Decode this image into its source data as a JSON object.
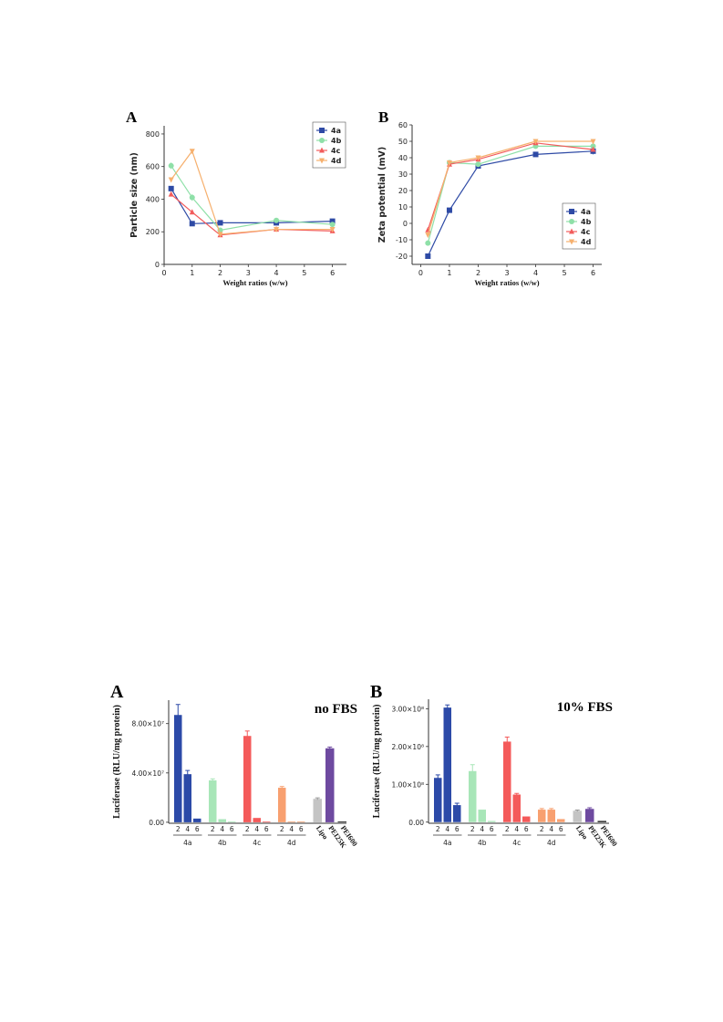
{
  "chart_data": [
    {
      "panel": "A",
      "type": "line",
      "xlabel": "Weight ratios (w/w)",
      "ylabel": "Particle size (nm)",
      "xlim": [
        0,
        6.5
      ],
      "ylim": [
        0,
        850
      ],
      "xticks": [
        "0",
        "1",
        "2",
        "3",
        "4",
        "5",
        "6"
      ],
      "yticks": [
        "0",
        "200",
        "400",
        "600",
        "800"
      ],
      "legend_position": "top-right",
      "x": [
        0.25,
        1,
        2,
        4,
        6
      ],
      "series": [
        {
          "name": "4a",
          "color": "#2e4aa5",
          "marker": "square",
          "values": [
            465,
            250,
            255,
            255,
            265
          ],
          "errors": [
            15,
            0,
            0,
            0,
            10
          ]
        },
        {
          "name": "4b",
          "color": "#8fe0a8",
          "marker": "circle",
          "values": [
            605,
            410,
            210,
            270,
            245
          ],
          "errors": [
            20,
            20,
            0,
            10,
            0
          ]
        },
        {
          "name": "4c",
          "color": "#f25c5c",
          "marker": "triangle",
          "values": [
            430,
            320,
            180,
            215,
            205
          ],
          "errors": [
            0,
            0,
            0,
            0,
            0
          ]
        },
        {
          "name": "4d",
          "color": "#f6b06e",
          "marker": "triangle-down",
          "values": [
            520,
            695,
            185,
            215,
            215
          ],
          "errors": [
            0,
            10,
            0,
            0,
            0
          ]
        }
      ]
    },
    {
      "panel": "B",
      "type": "line",
      "xlabel": "Weight ratios (w/w)",
      "ylabel": "Zeta potential (mV)",
      "xlim": [
        -0.3,
        6.3
      ],
      "ylim": [
        -25,
        60
      ],
      "xticks": [
        "0",
        "1",
        "2",
        "3",
        "4",
        "5",
        "6"
      ],
      "yticks": [
        "-20",
        "-10",
        "0",
        "10",
        "20",
        "30",
        "40",
        "50",
        "60"
      ],
      "legend_position": "bottom-right",
      "x": [
        0.25,
        1,
        2,
        4,
        6
      ],
      "series": [
        {
          "name": "4a",
          "color": "#2e4aa5",
          "marker": "square",
          "values": [
            -20,
            8,
            35,
            42,
            44
          ],
          "errors": [
            0,
            0,
            0,
            0,
            2
          ]
        },
        {
          "name": "4b",
          "color": "#8fe0a8",
          "marker": "circle",
          "values": [
            -12,
            37,
            36,
            47,
            47
          ],
          "errors": [
            1.5,
            1,
            0,
            0,
            1
          ]
        },
        {
          "name": "4c",
          "color": "#f25c5c",
          "marker": "triangle",
          "values": [
            -4,
            36,
            39,
            49,
            45
          ],
          "errors": [
            0,
            0,
            0,
            0,
            0
          ]
        },
        {
          "name": "4d",
          "color": "#f6b06e",
          "marker": "triangle-down",
          "values": [
            -7,
            37,
            40,
            50,
            50
          ],
          "errors": [
            0,
            0,
            0,
            0,
            0
          ]
        }
      ]
    },
    {
      "panel": "A",
      "type": "bar",
      "annotation": "no FBS",
      "ylabel": "Luciferase (RLU/mg protein)",
      "ylim": [
        -800000.0,
        99000000.0
      ],
      "yticks": [
        {
          "value": 0,
          "label": "0.00"
        },
        {
          "value": 40000000.0,
          "label": "4.00×10⁷"
        },
        {
          "value": 80000000.0,
          "label": "8.00×10⁷"
        }
      ],
      "groups": [
        {
          "name": "4a",
          "ticks": [
            "2",
            "4",
            "6"
          ],
          "color": "#2c4aa8",
          "values": [
            87000000.0,
            39000000.0,
            3000000.0
          ],
          "errors": [
            8500000.0,
            3000000.0,
            0
          ]
        },
        {
          "name": "4b",
          "ticks": [
            "2",
            "4",
            "6"
          ],
          "color": "#a8e6b8",
          "values": [
            34000000.0,
            2500000.0,
            500000.0
          ],
          "errors": [
            1200000.0,
            0,
            0
          ]
        },
        {
          "name": "4c",
          "ticks": [
            "2",
            "4",
            "6"
          ],
          "color": "#f45a5a",
          "values": [
            70000000.0,
            3500000.0,
            500000.0
          ],
          "errors": [
            4000000.0,
            0,
            0
          ]
        },
        {
          "name": "4d",
          "ticks": [
            "2",
            "4",
            "6"
          ],
          "color": "#f8a070",
          "values": [
            28000000.0,
            500000.0,
            500000.0
          ],
          "errors": [
            1000000.0,
            0,
            0
          ]
        }
      ],
      "controls": [
        {
          "name": "Lipo",
          "color": "#c4c4c4",
          "value": 19000000.0,
          "error": 800000.0
        },
        {
          "name": "PEI25K",
          "color": "#6e4aa0",
          "value": 60000000.0,
          "error": 1000000.0
        },
        {
          "name": "PEI600",
          "color": "#000000",
          "value": 500000.0,
          "error": 0
        }
      ]
    },
    {
      "panel": "B",
      "type": "bar",
      "annotation": "10% FBS",
      "ylabel": "Luciferase (RLU/mg protein)",
      "ylim": [
        -3000000.0,
        325000000.0
      ],
      "yticks": [
        {
          "value": 0,
          "label": "0.00"
        },
        {
          "value": 100000000.0,
          "label": "1.00×10⁸"
        },
        {
          "value": 200000000.0,
          "label": "2.00×10⁸"
        },
        {
          "value": 300000000.0,
          "label": "3.00×10⁸"
        }
      ],
      "groups": [
        {
          "name": "4a",
          "ticks": [
            "2",
            "4",
            "6"
          ],
          "color": "#2c4aa8",
          "values": [
            117000000.0,
            303000000.0,
            45000000.0
          ],
          "errors": [
            8000000.0,
            7000000.0,
            5000000.0
          ]
        },
        {
          "name": "4b",
          "ticks": [
            "2",
            "4",
            "6"
          ],
          "color": "#a8e6b8",
          "values": [
            135000000.0,
            33000000.0,
            3000000.0
          ],
          "errors": [
            17000000.0,
            0,
            0
          ]
        },
        {
          "name": "4c",
          "ticks": [
            "2",
            "4",
            "6"
          ],
          "color": "#f45a5a",
          "values": [
            213000000.0,
            73000000.0,
            15000000.0
          ],
          "errors": [
            12000000.0,
            3000000.0,
            0
          ]
        },
        {
          "name": "4d",
          "ticks": [
            "2",
            "4",
            "6"
          ],
          "color": "#f8a070",
          "values": [
            33000000.0,
            33000000.0,
            8000000.0
          ],
          "errors": [
            3000000.0,
            3000000.0,
            0
          ]
        }
      ],
      "controls": [
        {
          "name": "Lipo",
          "color": "#c4c4c4",
          "value": 30000000.0,
          "error": 2000000.0
        },
        {
          "name": "PEI25K",
          "color": "#6e4aa0",
          "value": 35000000.0,
          "error": 3000000.0
        },
        {
          "name": "PEI600",
          "color": "#000000",
          "value": 3000000.0,
          "error": 0
        }
      ]
    }
  ]
}
